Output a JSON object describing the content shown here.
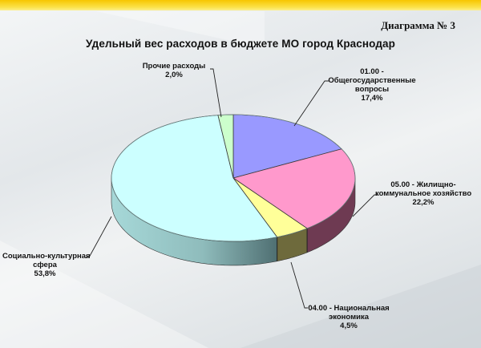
{
  "header": {
    "diagram_label": "Диаграмма № 3"
  },
  "chart_data": {
    "type": "pie",
    "title": "Удельный вес расходов в бюджете МО город Краснодар",
    "style": "3d",
    "unit": "%",
    "slices": [
      {
        "name": "01.00 - Общегосударственные вопросы",
        "value": 17.4,
        "label": "17,4%",
        "color": "#9999ff"
      },
      {
        "name": "05.00 - Жилищно-коммунальное хозяйство",
        "value": 22.2,
        "label": "22,2%",
        "color": "#ff99cc"
      },
      {
        "name": "04.00 - Национальная экономика",
        "value": 4.5,
        "label": "4,5%",
        "color": "#ffff99"
      },
      {
        "name": "Социально-культурная сфера",
        "value": 53.8,
        "label": "53,8%",
        "color": "#ccffff"
      },
      {
        "name": "Прочие расходы",
        "value": 2.0,
        "label": "2,0%",
        "color": "#ccffcc"
      }
    ],
    "legend": "none",
    "data_labels": "outside with leader lines"
  },
  "labels": {
    "other": {
      "line1": "Прочие расходы",
      "line2": "2,0%"
    },
    "general": {
      "line1": "01.00 -",
      "line2": "Общегосударственные",
      "line3": "вопросы",
      "line4": "17,4%"
    },
    "housing": {
      "line1": "05.00 - Жилищно-",
      "line2": "коммунальное хозяйство",
      "line3": "22,2%"
    },
    "social": {
      "line1": "Социально-культурная",
      "line2": "сфера",
      "line3": "53,8%"
    },
    "economy": {
      "line1": "04.00 - Национальная",
      "line2": "экономика",
      "line3": "4,5%"
    }
  }
}
